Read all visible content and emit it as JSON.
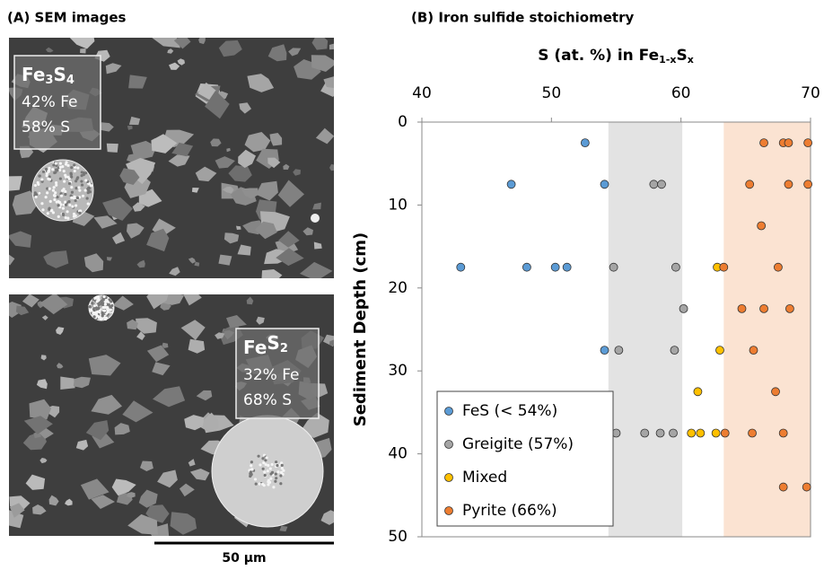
{
  "panel_a": {
    "title": "(A) SEM images",
    "images": [
      {
        "formula": [
          "Fe",
          "3",
          "S",
          "4"
        ],
        "lines": [
          "42% Fe",
          "58% S"
        ]
      },
      {
        "formula": [
          "Fe",
          "S",
          "2"
        ],
        "lines": [
          "32% Fe",
          "68% S"
        ]
      }
    ],
    "scale_bar": "50 µm"
  },
  "chart_data": {
    "type": "scatter",
    "title": "(B) Iron sulfide stoichiometry",
    "x_label": [
      "S (at. %) in Fe",
      "1-x",
      "S",
      "x"
    ],
    "y_label": "Sediment Depth (cm)",
    "xlim": [
      40,
      70
    ],
    "xticks": [
      40,
      50,
      60,
      70
    ],
    "ylim": [
      0,
      50
    ],
    "yticks": [
      0,
      10,
      20,
      30,
      40,
      50
    ],
    "y_inverted": true,
    "legend": "lower left",
    "bands": [
      {
        "from": 54.4,
        "to": 60.1,
        "color": "#e3e3e3"
      },
      {
        "from": 63.3,
        "to": 70,
        "color": "#fbe3d2"
      }
    ],
    "series": [
      {
        "name": "FeS (< 54%)",
        "color": "#5b9bd5",
        "x": [
          52.6,
          46.9,
          54.1,
          43.0,
          48.1,
          50.3,
          51.2,
          54.1
        ],
        "values": [
          2.5,
          7.5,
          7.5,
          17.5,
          17.5,
          17.5,
          17.5,
          27.5
        ]
      },
      {
        "name": "Greigite (57%)",
        "color": "#a5a5a5",
        "x": [
          57.9,
          58.5,
          54.8,
          59.6,
          60.2,
          55.2,
          59.5,
          55.0,
          57.2,
          58.4,
          59.4
        ],
        "values": [
          7.5,
          7.5,
          17.5,
          17.5,
          22.5,
          27.5,
          27.5,
          37.5,
          37.5,
          37.5,
          37.5
        ]
      },
      {
        "name": "Mixed",
        "color": "#ffc000",
        "x": [
          62.8,
          63.0,
          61.3,
          60.8,
          61.5,
          62.7
        ],
        "values": [
          17.5,
          27.5,
          32.5,
          37.5,
          37.5,
          37.5
        ]
      },
      {
        "name": "Pyrite (66%)",
        "color": "#ed7d31",
        "x": [
          66.4,
          67.9,
          68.3,
          69.8,
          65.3,
          68.3,
          69.8,
          66.2,
          63.3,
          67.5,
          64.7,
          66.4,
          68.4,
          65.6,
          67.3,
          63.4,
          65.5,
          67.9,
          67.9,
          69.7
        ],
        "values": [
          2.5,
          2.5,
          2.5,
          2.5,
          7.5,
          7.5,
          7.5,
          12.5,
          17.5,
          17.5,
          22.5,
          22.5,
          22.5,
          27.5,
          32.5,
          37.5,
          37.5,
          37.5,
          44,
          44
        ]
      }
    ]
  }
}
